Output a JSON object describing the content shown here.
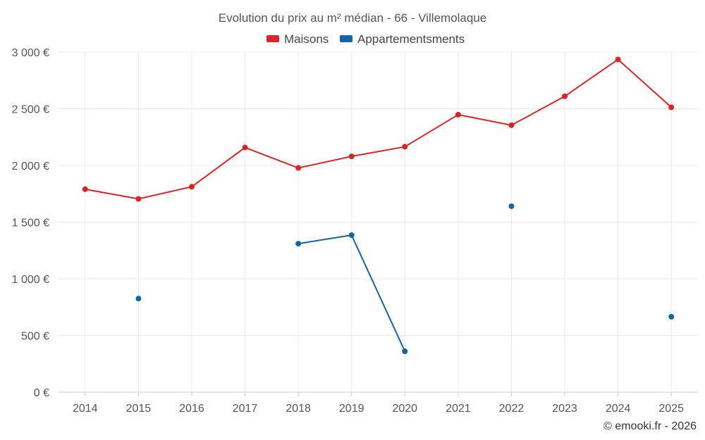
{
  "chart_data": {
    "type": "line",
    "title": "Evolution du prix au m² médian - 66 - Villemolaque",
    "categories": [
      "2014",
      "2015",
      "2016",
      "2017",
      "2018",
      "2019",
      "2020",
      "2021",
      "2022",
      "2023",
      "2024",
      "2025"
    ],
    "y_tick_labels": [
      "0 €",
      "500 €",
      "1 000 €",
      "1 500 €",
      "2 000 €",
      "2 500 €",
      "3 000 €"
    ],
    "y_ticks": [
      0,
      500,
      1000,
      1500,
      2000,
      2500,
      3000
    ],
    "ylim": [
      0,
      3000
    ],
    "grid": true,
    "legend_position": "top-center",
    "series": [
      {
        "name": "Maisons",
        "color": "#d62728",
        "values": [
          1790,
          1705,
          1812,
          2158,
          1978,
          2080,
          2165,
          2448,
          2355,
          2610,
          2935,
          2513
        ]
      },
      {
        "name": "Appartementsments",
        "color": "#1565a0",
        "values": [
          null,
          825,
          null,
          null,
          1310,
          1385,
          360,
          null,
          1640,
          null,
          null,
          665
        ]
      }
    ]
  },
  "credit": "© emooki.fr - 2026"
}
